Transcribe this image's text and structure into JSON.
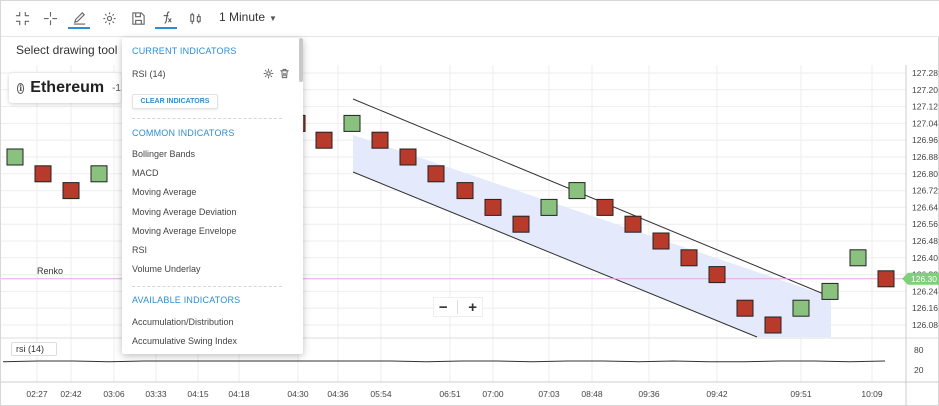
{
  "toolbar": {
    "period": "1 Minute",
    "icons": [
      "fullscreen-exit-icon",
      "crosshair-icon",
      "pencil-icon",
      "gear-icon",
      "save-icon",
      "fx-icon",
      "candle-type-icon"
    ]
  },
  "drawing_tool": {
    "label": "Select drawing tool"
  },
  "ticker": {
    "name": "Ethereum",
    "change": "-1"
  },
  "chart": {
    "series_label": "Renko",
    "price_label": "126.30",
    "indicator_label": "rsi (14)",
    "price_axis": [
      "127.28",
      "127.20",
      "127.12",
      "127.04",
      "126.96",
      "126.88",
      "126.80",
      "126.72",
      "126.64",
      "126.56",
      "126.48",
      "126.40",
      "126.32",
      "126.24",
      "126.16",
      "126.08"
    ],
    "rsi_axis": [
      "80",
      "20"
    ],
    "time_axis": [
      "02:27",
      "02:42",
      "03:06",
      "03:33",
      "04:15",
      "04:18",
      "04:30",
      "04:36",
      "05:54",
      "06:51",
      "07:00",
      "07:03",
      "08:48",
      "09:36",
      "09:42",
      "09:51",
      "10:09"
    ],
    "colors": {
      "up": "#8bc17f",
      "down": "#b83a2a",
      "channel": "#e1e8fb",
      "price_line": "#e8a6e8",
      "price_tag": "#7ed07a"
    },
    "bricks": [
      {
        "time": "02:27",
        "dir": "up",
        "price": 126.88
      },
      {
        "time": "02:42",
        "dir": "down",
        "price": 126.8
      },
      {
        "time": "02:42",
        "dir": "down",
        "price": 126.72
      },
      {
        "time": "03:06",
        "dir": "up",
        "price": 126.8
      },
      {
        "time": "04:30",
        "dir": "down",
        "price": 127.04
      },
      {
        "time": "04:30",
        "dir": "down",
        "price": 126.96
      },
      {
        "time": "04:36",
        "dir": "up",
        "price": 127.04
      },
      {
        "time": "05:54",
        "dir": "down",
        "price": 126.96
      },
      {
        "time": "05:54",
        "dir": "down",
        "price": 126.88
      },
      {
        "time": "06:51",
        "dir": "down",
        "price": 126.8
      },
      {
        "time": "06:51",
        "dir": "down",
        "price": 126.72
      },
      {
        "time": "07:00",
        "dir": "down",
        "price": 126.64
      },
      {
        "time": "07:00",
        "dir": "down",
        "price": 126.56
      },
      {
        "time": "07:03",
        "dir": "up",
        "price": 126.64
      },
      {
        "time": "07:03",
        "dir": "up",
        "price": 126.72
      },
      {
        "time": "08:48",
        "dir": "down",
        "price": 126.64
      },
      {
        "time": "08:48",
        "dir": "down",
        "price": 126.56
      },
      {
        "time": "09:36",
        "dir": "down",
        "price": 126.48
      },
      {
        "time": "09:36",
        "dir": "down",
        "price": 126.4
      },
      {
        "time": "09:42",
        "dir": "down",
        "price": 126.32
      },
      {
        "time": "09:42",
        "dir": "down",
        "price": 126.16
      },
      {
        "time": "09:42",
        "dir": "down",
        "price": 126.08
      },
      {
        "time": "09:51",
        "dir": "up",
        "price": 126.16
      },
      {
        "time": "09:51",
        "dir": "up",
        "price": 126.24
      },
      {
        "time": "10:09",
        "dir": "up",
        "price": 126.4
      },
      {
        "time": "10:09",
        "dir": "down",
        "price": 126.3
      }
    ]
  },
  "zoom": {
    "minus": "−",
    "plus": "+"
  },
  "indicators": {
    "current_header": "CURRENT INDICATORS",
    "current": [
      {
        "label": "RSI (14)"
      }
    ],
    "clear_label": "CLEAR INDICATORS",
    "common_header": "COMMON INDICATORS",
    "common": [
      "Bollinger Bands",
      "MACD",
      "Moving Average",
      "Moving Average Deviation",
      "Moving Average Envelope",
      "RSI",
      "Volume Underlay"
    ],
    "available_header": "AVAILABLE INDICATORS",
    "available": [
      "Accumulation/Distribution",
      "Accumulative Swing Index"
    ]
  }
}
